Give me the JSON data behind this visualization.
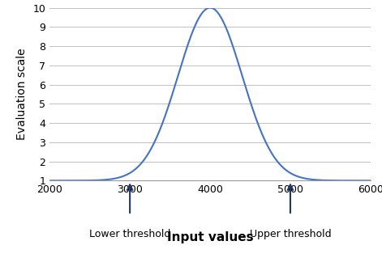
{
  "mu": 4000,
  "sigma": 400,
  "amplitude": 10,
  "baseline": 1,
  "x_min": 2000,
  "x_max": 6000,
  "y_min": 1,
  "y_max": 10,
  "x_ticks": [
    2000,
    3000,
    4000,
    5000,
    6000
  ],
  "y_ticks": [
    1,
    2,
    3,
    4,
    5,
    6,
    7,
    8,
    9,
    10
  ],
  "lower_threshold": 3000,
  "upper_threshold": 5000,
  "xlabel": "Input values",
  "ylabel": "Evaluation scale",
  "lower_label": "Lower threshold",
  "upper_label": "Upper threshold",
  "curve_color": "#4472C4",
  "arrow_color": "#1F3864",
  "grid_color": "#C0C0C0",
  "background_color": "#FFFFFF",
  "xlabel_fontsize": 11,
  "ylabel_fontsize": 10,
  "tick_fontsize": 9,
  "label_fontsize": 9
}
